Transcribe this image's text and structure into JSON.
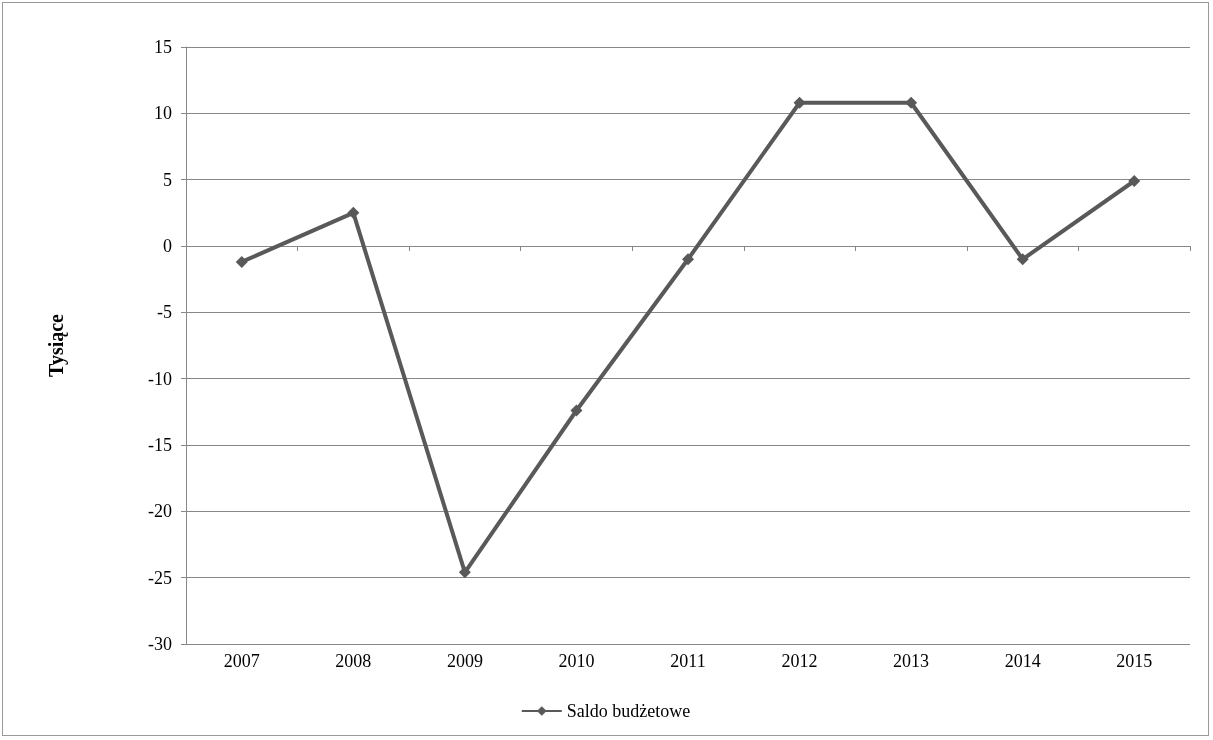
{
  "chart_data": {
    "type": "line",
    "ylabel": "Tysiące",
    "categories": [
      "2007",
      "2008",
      "2009",
      "2010",
      "2011",
      "2012",
      "2013",
      "2014",
      "2015"
    ],
    "series": [
      {
        "name": "Saldo budżetowe",
        "color": "#595959",
        "values": [
          -1.2,
          2.5,
          -24.6,
          -12.4,
          -1.0,
          10.8,
          10.8,
          -1.0,
          4.9
        ]
      }
    ],
    "ylim": [
      -30,
      15
    ],
    "yticks": [
      -30,
      -25,
      -20,
      -15,
      -10,
      -5,
      0,
      5,
      10,
      15
    ],
    "grid": "y",
    "legend": "bottom",
    "marker": "diamond",
    "line_style": "solid"
  }
}
